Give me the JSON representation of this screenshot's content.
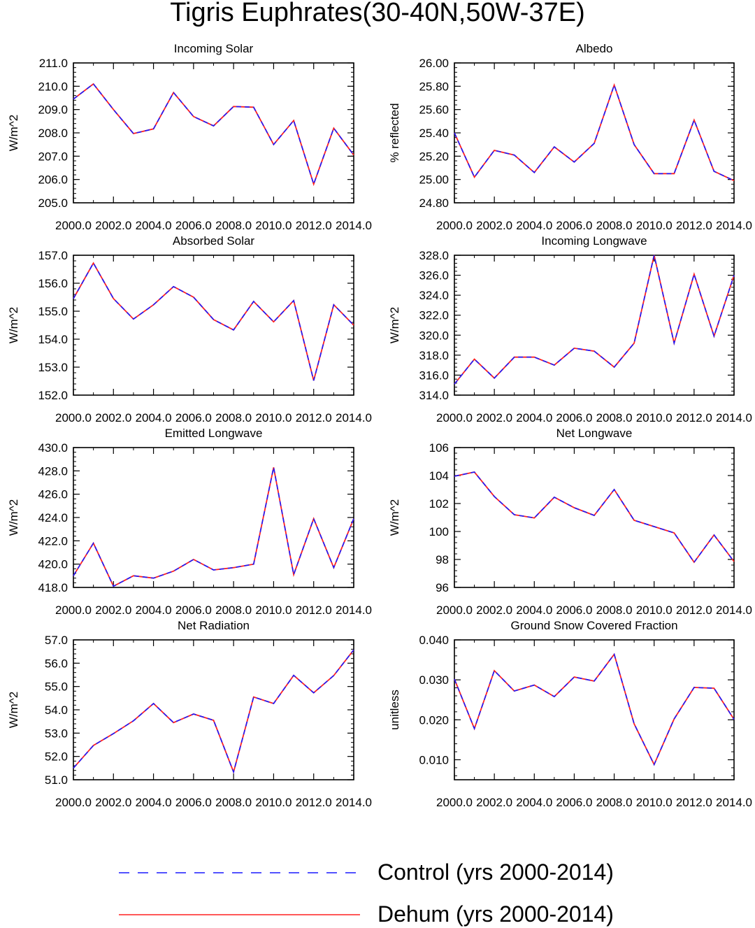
{
  "title": "Tigris Euphrates(30-40N,50W-37E)",
  "legend": {
    "control_label": "Control (yrs 2000-2014)",
    "dehum_label": "Dehum (yrs 2000-2014)",
    "control_color": "#1a1aff",
    "dehum_color": "#ff2020"
  },
  "chart_data": [
    {
      "type": "line",
      "title": "Incoming Solar",
      "ylabel": "W/m^2",
      "ylim": [
        205.0,
        211.0
      ],
      "yticks": [
        205.0,
        206.0,
        207.0,
        208.0,
        209.0,
        210.0,
        211.0
      ],
      "ytick_labels": [
        "205.0",
        "206.0",
        "207.0",
        "208.0",
        "209.0",
        "210.0",
        "211.0"
      ],
      "xlim": [
        2000,
        2014
      ],
      "xtick_labels": [
        "2000.0",
        "2002.0",
        "2004.0",
        "2006.0",
        "2008.0",
        "2010.0",
        "2012.0",
        "2014.0"
      ],
      "x": [
        2000,
        2001,
        2002,
        2003,
        2004,
        2005,
        2006,
        2007,
        2008,
        2009,
        2010,
        2011,
        2012,
        2013,
        2014
      ],
      "series": [
        {
          "name": "Control (yrs 2000-2014)",
          "values": [
            209.45,
            210.1,
            209.0,
            207.97,
            208.17,
            209.73,
            208.7,
            208.3,
            209.13,
            209.1,
            207.5,
            208.53,
            205.8,
            208.2,
            207.05
          ]
        },
        {
          "name": "Dehum (yrs 2000-2014)",
          "values": [
            209.45,
            210.1,
            209.0,
            207.97,
            208.17,
            209.73,
            208.7,
            208.3,
            209.13,
            209.1,
            207.5,
            208.53,
            205.8,
            208.2,
            207.05
          ]
        }
      ]
    },
    {
      "type": "line",
      "title": "Albedo",
      "ylabel": "% reflected",
      "ylim": [
        24.8,
        26.0
      ],
      "yticks": [
        24.8,
        25.0,
        25.2,
        25.4,
        25.6,
        25.8,
        26.0
      ],
      "ytick_labels": [
        "24.80",
        "25.00",
        "25.20",
        "25.40",
        "25.60",
        "25.80",
        "26.00"
      ],
      "xlim": [
        2000,
        2014
      ],
      "xtick_labels": [
        "2000.0",
        "2002.0",
        "2004.0",
        "2006.0",
        "2008.0",
        "2010.0",
        "2012.0",
        "2014.0"
      ],
      "x": [
        2000,
        2001,
        2002,
        2003,
        2004,
        2005,
        2006,
        2007,
        2008,
        2009,
        2010,
        2011,
        2012,
        2013,
        2014
      ],
      "series": [
        {
          "name": "Control (yrs 2000-2014)",
          "values": [
            25.4,
            25.02,
            25.25,
            25.21,
            25.06,
            25.28,
            25.15,
            25.31,
            25.81,
            25.3,
            25.05,
            25.05,
            25.51,
            25.07,
            24.99
          ]
        },
        {
          "name": "Dehum (yrs 2000-2014)",
          "values": [
            25.4,
            25.02,
            25.25,
            25.21,
            25.06,
            25.28,
            25.15,
            25.31,
            25.81,
            25.3,
            25.05,
            25.05,
            25.51,
            25.07,
            24.99
          ]
        }
      ]
    },
    {
      "type": "line",
      "title": "Absorbed Solar",
      "ylabel": "W/m^2",
      "ylim": [
        152.0,
        157.0
      ],
      "yticks": [
        152.0,
        153.0,
        154.0,
        155.0,
        156.0,
        157.0
      ],
      "ytick_labels": [
        "152.0",
        "153.0",
        "154.0",
        "155.0",
        "156.0",
        "157.0"
      ],
      "xlim": [
        2000,
        2014
      ],
      "xtick_labels": [
        "2000.0",
        "2002.0",
        "2004.0",
        "2006.0",
        "2008.0",
        "2010.0",
        "2012.0",
        "2014.0"
      ],
      "x": [
        2000,
        2001,
        2002,
        2003,
        2004,
        2005,
        2006,
        2007,
        2008,
        2009,
        2010,
        2011,
        2012,
        2013,
        2014
      ],
      "series": [
        {
          "name": "Control (yrs 2000-2014)",
          "values": [
            155.45,
            156.72,
            155.45,
            154.72,
            155.23,
            155.88,
            155.5,
            154.7,
            154.33,
            155.35,
            154.62,
            155.38,
            152.52,
            155.23,
            154.5
          ]
        },
        {
          "name": "Dehum (yrs 2000-2014)",
          "values": [
            155.45,
            156.72,
            155.45,
            154.72,
            155.23,
            155.88,
            155.5,
            154.7,
            154.33,
            155.35,
            154.62,
            155.38,
            152.52,
            155.23,
            154.5
          ]
        }
      ]
    },
    {
      "type": "line",
      "title": "Incoming Longwave",
      "ylabel": "W/m^2",
      "ylim": [
        314.0,
        328.0
      ],
      "yticks": [
        314.0,
        316.0,
        318.0,
        320.0,
        322.0,
        324.0,
        326.0,
        328.0
      ],
      "ytick_labels": [
        "314.0",
        "316.0",
        "318.0",
        "320.0",
        "322.0",
        "324.0",
        "326.0",
        "328.0"
      ],
      "xlim": [
        2000,
        2014
      ],
      "xtick_labels": [
        "2000.0",
        "2002.0",
        "2004.0",
        "2006.0",
        "2008.0",
        "2010.0",
        "2012.0",
        "2014.0"
      ],
      "x": [
        2000,
        2001,
        2002,
        2003,
        2004,
        2005,
        2006,
        2007,
        2008,
        2009,
        2010,
        2011,
        2012,
        2013,
        2014
      ],
      "series": [
        {
          "name": "Control (yrs 2000-2014)",
          "values": [
            315.1,
            317.6,
            315.7,
            317.8,
            317.8,
            317.0,
            318.7,
            318.4,
            316.8,
            319.2,
            328.0,
            319.2,
            326.1,
            319.9,
            326.0
          ]
        },
        {
          "name": "Dehum (yrs 2000-2014)",
          "values": [
            315.1,
            317.6,
            315.7,
            317.8,
            317.8,
            317.0,
            318.7,
            318.4,
            316.8,
            319.2,
            328.0,
            319.2,
            326.1,
            319.9,
            326.0
          ]
        }
      ]
    },
    {
      "type": "line",
      "title": "Emitted Longwave",
      "ylabel": "W/m^2",
      "ylim": [
        418.0,
        430.0
      ],
      "yticks": [
        418.0,
        420.0,
        422.0,
        424.0,
        426.0,
        428.0,
        430.0
      ],
      "ytick_labels": [
        "418.0",
        "420.0",
        "422.0",
        "424.0",
        "426.0",
        "428.0",
        "430.0"
      ],
      "xlim": [
        2000,
        2014
      ],
      "xtick_labels": [
        "2000.0",
        "2002.0",
        "2004.0",
        "2006.0",
        "2008.0",
        "2010.0",
        "2012.0",
        "2014.0"
      ],
      "x": [
        2000,
        2001,
        2002,
        2003,
        2004,
        2005,
        2006,
        2007,
        2008,
        2009,
        2010,
        2011,
        2012,
        2013,
        2014
      ],
      "series": [
        {
          "name": "Control (yrs 2000-2014)",
          "values": [
            419.0,
            421.8,
            418.1,
            419.0,
            418.8,
            419.4,
            420.4,
            419.5,
            419.7,
            420.0,
            428.3,
            419.1,
            423.9,
            419.7,
            423.9
          ]
        },
        {
          "name": "Dehum (yrs 2000-2014)",
          "values": [
            419.0,
            421.8,
            418.1,
            419.0,
            418.8,
            419.4,
            420.4,
            419.5,
            419.7,
            420.0,
            428.3,
            419.1,
            423.9,
            419.7,
            423.9
          ]
        }
      ]
    },
    {
      "type": "line",
      "title": "Net Longwave",
      "ylabel": "W/m^2",
      "ylim": [
        96,
        106
      ],
      "yticks": [
        96,
        98,
        100,
        102,
        104,
        106
      ],
      "ytick_labels": [
        "96",
        "98",
        "100",
        "102",
        "104",
        "106"
      ],
      "xlim": [
        2000,
        2014
      ],
      "xtick_labels": [
        "2000.0",
        "2002.0",
        "2004.0",
        "2006.0",
        "2008.0",
        "2010.0",
        "2012.0",
        "2014.0"
      ],
      "x": [
        2000,
        2001,
        2002,
        2003,
        2004,
        2005,
        2006,
        2007,
        2008,
        2009,
        2010,
        2011,
        2012,
        2013,
        2014
      ],
      "series": [
        {
          "name": "Control (yrs 2000-2014)",
          "values": [
            103.95,
            104.25,
            102.5,
            101.2,
            100.97,
            102.45,
            101.7,
            101.15,
            103.0,
            100.8,
            100.35,
            99.9,
            97.8,
            99.75,
            97.85
          ]
        },
        {
          "name": "Dehum (yrs 2000-2014)",
          "values": [
            103.95,
            104.25,
            102.5,
            101.2,
            100.97,
            102.45,
            101.7,
            101.15,
            103.0,
            100.8,
            100.35,
            99.9,
            97.8,
            99.75,
            97.85
          ]
        }
      ]
    },
    {
      "type": "line",
      "title": "Net Radiation",
      "ylabel": "W/m^2",
      "ylim": [
        51.0,
        57.0
      ],
      "yticks": [
        51.0,
        52.0,
        53.0,
        54.0,
        55.0,
        56.0,
        57.0
      ],
      "ytick_labels": [
        "51.0",
        "52.0",
        "53.0",
        "54.0",
        "55.0",
        "56.0",
        "57.0"
      ],
      "xlim": [
        2000,
        2014
      ],
      "xtick_labels": [
        "2000.0",
        "2002.0",
        "2004.0",
        "2006.0",
        "2008.0",
        "2010.0",
        "2012.0",
        "2014.0"
      ],
      "x": [
        2000,
        2001,
        2002,
        2003,
        2004,
        2005,
        2006,
        2007,
        2008,
        2009,
        2010,
        2011,
        2012,
        2013,
        2014
      ],
      "series": [
        {
          "name": "Control (yrs 2000-2014)",
          "values": [
            51.5,
            52.47,
            52.98,
            53.53,
            54.27,
            53.45,
            53.82,
            53.55,
            51.33,
            54.55,
            54.27,
            55.48,
            54.73,
            55.47,
            56.57
          ]
        },
        {
          "name": "Dehum (yrs 2000-2014)",
          "values": [
            51.5,
            52.47,
            52.98,
            53.53,
            54.27,
            53.45,
            53.82,
            53.55,
            51.33,
            54.55,
            54.27,
            55.48,
            54.73,
            55.47,
            56.57
          ]
        }
      ]
    },
    {
      "type": "line",
      "title": "Ground Snow Covered Fraction",
      "ylabel": "unitless",
      "ylim": [
        0.005,
        0.04
      ],
      "yticks": [
        0.01,
        0.02,
        0.03,
        0.04
      ],
      "ytick_labels": [
        "0.010",
        "0.020",
        "0.030",
        "0.040"
      ],
      "xlim": [
        2000,
        2014
      ],
      "xtick_labels": [
        "2000.0",
        "2002.0",
        "2004.0",
        "2006.0",
        "2008.0",
        "2010.0",
        "2012.0",
        "2014.0"
      ],
      "x": [
        2000,
        2001,
        2002,
        2003,
        2004,
        2005,
        2006,
        2007,
        2008,
        2009,
        2010,
        2011,
        2012,
        2013,
        2014
      ],
      "series": [
        {
          "name": "Control (yrs 2000-2014)",
          "values": [
            0.0302,
            0.0178,
            0.0323,
            0.0272,
            0.0287,
            0.0258,
            0.0307,
            0.0297,
            0.0364,
            0.019,
            0.0088,
            0.0202,
            0.0281,
            0.0279,
            0.0201
          ]
        },
        {
          "name": "Dehum (yrs 2000-2014)",
          "values": [
            0.0302,
            0.0178,
            0.0323,
            0.0272,
            0.0287,
            0.0258,
            0.0307,
            0.0297,
            0.0364,
            0.019,
            0.0088,
            0.0202,
            0.0281,
            0.0279,
            0.0201
          ]
        }
      ]
    }
  ]
}
